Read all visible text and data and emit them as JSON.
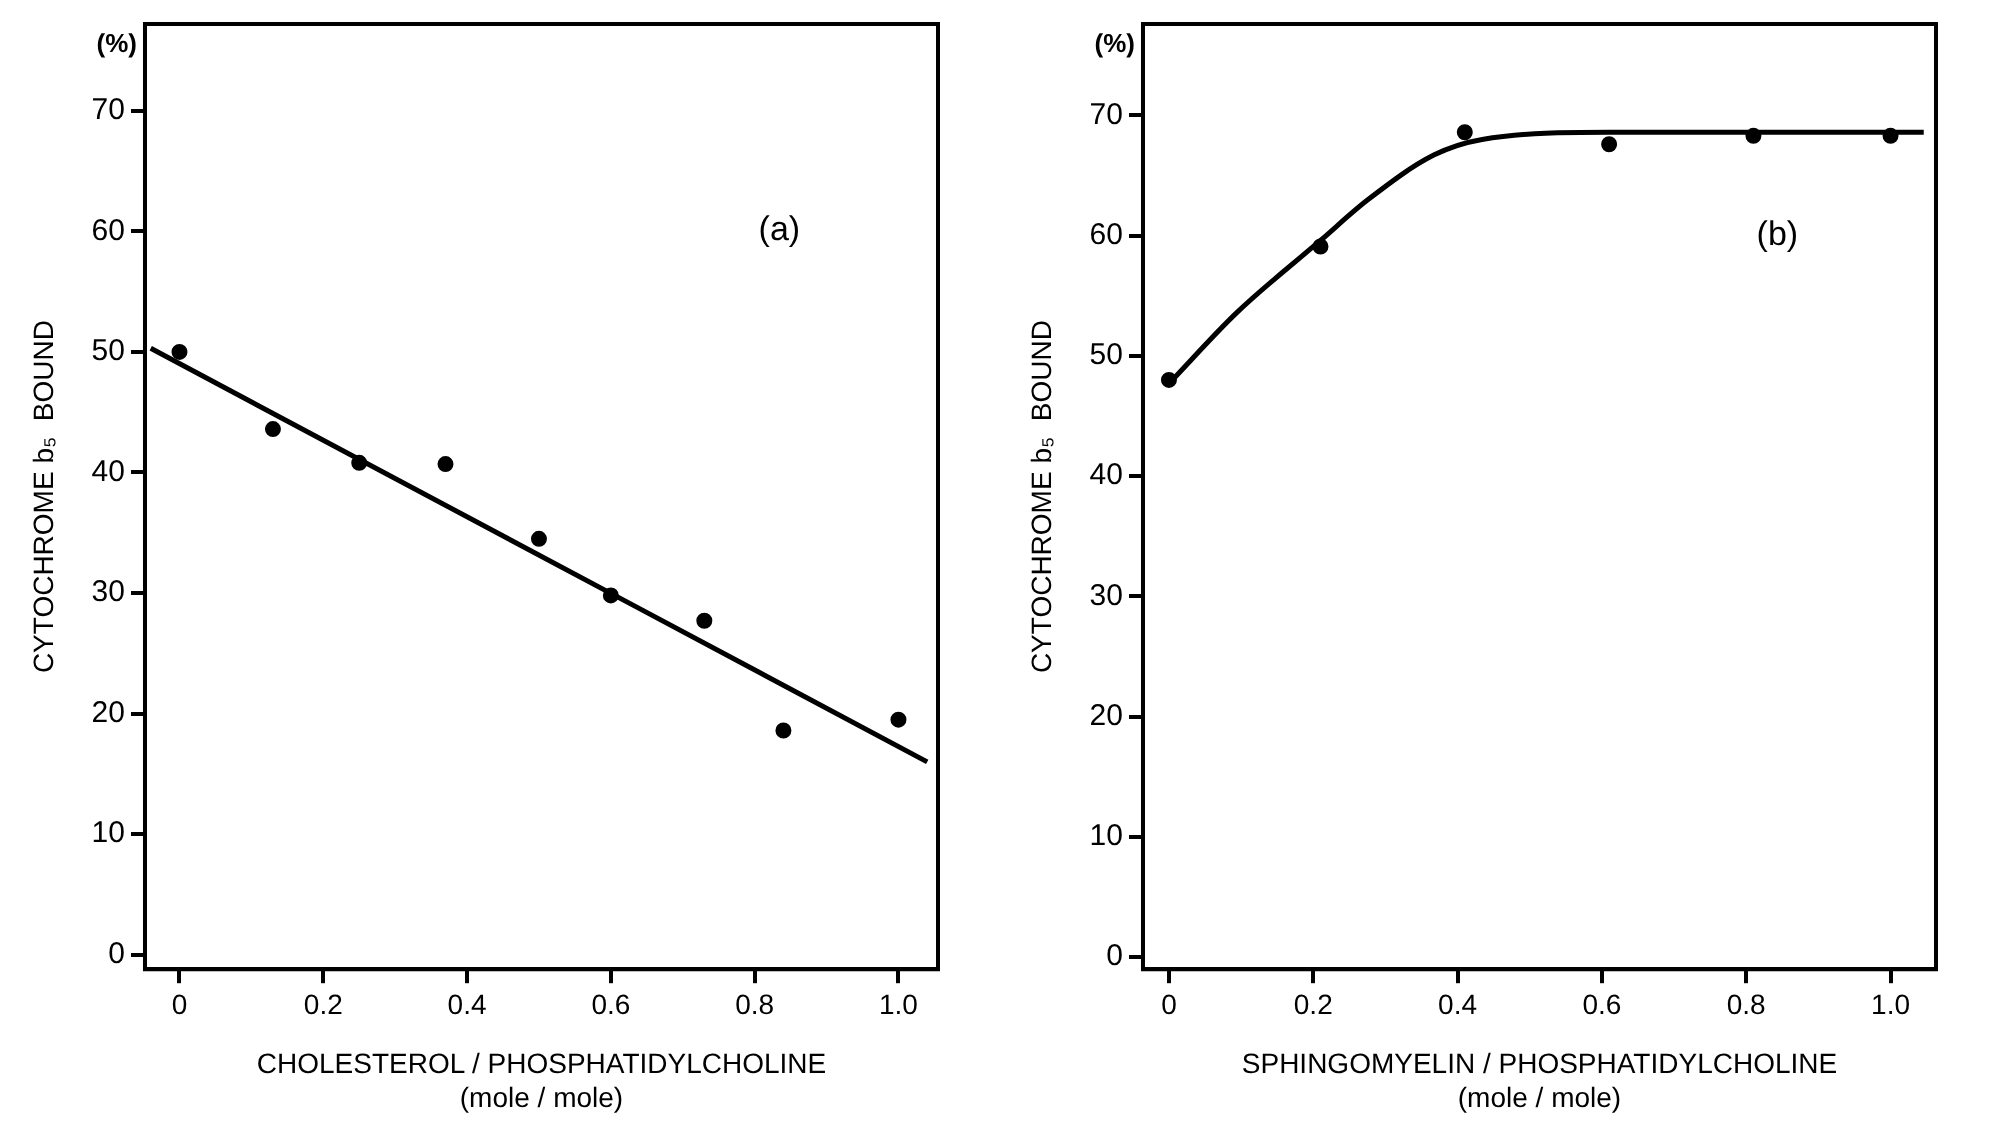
{
  "chart_data": [
    {
      "type": "scatter",
      "xlabel": "CHOLESTEROL / PHOSPHATIDYLCHOLINE\n(mole / mole)",
      "ylabel": "CYTOCHROME b₅  BOUND",
      "annotations": [
        "(%)",
        "(a)"
      ],
      "xlim": [
        -0.048,
        1.055
      ],
      "ylim": [
        -1.2,
        77.2
      ],
      "xticks": [
        0,
        0.2,
        0.4,
        0.6,
        0.8,
        {
          "value": 1,
          "label": "1.0"
        }
      ],
      "yticks": [
        0,
        10,
        20,
        30,
        40,
        50,
        60,
        70
      ],
      "grid": false,
      "legend": false,
      "series": [
        {
          "type": "scatter",
          "marker": "circle",
          "color": "#000000",
          "x": [
            0,
            0.13,
            0.25,
            0.37,
            0.5,
            0.6,
            0.73,
            0.84,
            1.0
          ],
          "values": [
            50,
            43.6,
            40.8,
            40.7,
            34.5,
            29.8,
            27.7,
            18.6,
            19.5
          ]
        },
        {
          "type": "line",
          "marker": "none",
          "color": "#000000",
          "x": [
            -0.04,
            1.04
          ],
          "values": [
            50.3,
            16
          ]
        }
      ]
    },
    {
      "type": "scatter",
      "xlabel": "SPHINGOMYELIN / PHOSPHATIDYLCHOLINE\n(mole / mole)",
      "ylabel": "CYTOCHROME b₅  BOUND",
      "annotations": [
        "(%)",
        "(b)"
      ],
      "xlim": [
        -0.036,
        1.063
      ],
      "ylim": [
        -1.0,
        77.6
      ],
      "xticks": [
        0,
        0.2,
        0.4,
        0.6,
        0.8,
        {
          "value": 1,
          "label": "1.0"
        }
      ],
      "yticks": [
        0,
        10,
        20,
        30,
        40,
        50,
        60,
        70
      ],
      "grid": false,
      "legend": false,
      "series": [
        {
          "type": "scatter",
          "marker": "circle",
          "color": "#000000",
          "x": [
            0,
            0.21,
            0.41,
            0.61,
            0.81,
            1.0
          ],
          "values": [
            48,
            59.1,
            68.6,
            67.6,
            68.3,
            68.3
          ]
        },
        {
          "type": "line",
          "marker": "none",
          "color": "#000000",
          "x": [
            0,
            0.094,
            0.21,
            0.276,
            0.367,
            0.434,
            0.61,
            1.046
          ],
          "values": [
            47.7,
            53.6,
            59.6,
            63,
            66.7,
            68,
            68.6,
            68.6
          ]
        }
      ]
    }
  ]
}
